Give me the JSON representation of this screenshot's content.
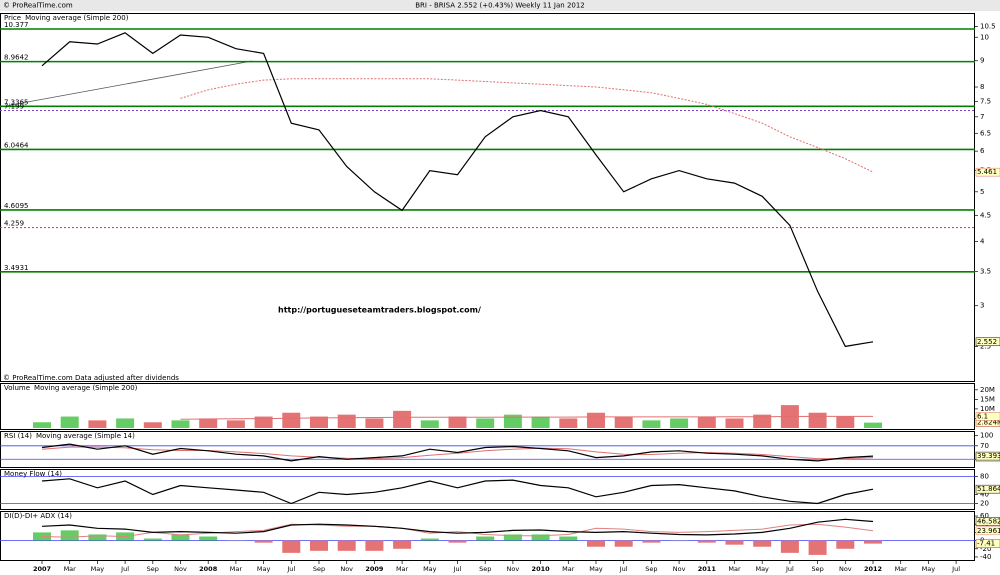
{
  "header": {
    "copyright": "© ProRealTime.com",
    "title": "BRI - BRISA   2.552 (+0.43%)   Weekly  11 Jan 2012"
  },
  "chart_data": [
    {
      "type": "line",
      "title": "Price",
      "log": true,
      "annotation": "http://portugueseteamtraders.blogspot.com/",
      "footnote": "© ProRealTime.com  Data adjusted after dividends",
      "categories": [
        "2007",
        "Mar",
        "May",
        "Jul",
        "Sep",
        "Nov",
        "2008",
        "Mar",
        "May",
        "Jul",
        "Sep",
        "Nov",
        "2009",
        "Mar",
        "May",
        "Jul",
        "Sep",
        "Nov",
        "2010",
        "Mar",
        "May",
        "Jul",
        "Sep",
        "Nov",
        "2011",
        "Mar",
        "May",
        "Jul",
        "Sep",
        "Nov",
        "2012",
        "Mar",
        "May",
        "Jul"
      ],
      "series": [
        {
          "name": "Moving average (Simple 200)",
          "color": "#e07070",
          "values": [
            null,
            null,
            null,
            null,
            null,
            7.6,
            7.9,
            8.1,
            8.25,
            8.3,
            8.3,
            8.3,
            8.3,
            8.3,
            8.3,
            8.25,
            8.2,
            8.15,
            8.1,
            8.05,
            8.0,
            7.9,
            7.8,
            7.6,
            7.4,
            7.1,
            6.8,
            6.4,
            6.1,
            5.8,
            5.461,
            null,
            null,
            null
          ]
        },
        {
          "name": "Price",
          "color": "#000000",
          "values": [
            8.8,
            9.8,
            9.7,
            10.2,
            9.3,
            10.1,
            10.0,
            9.5,
            9.3,
            6.8,
            6.6,
            5.6,
            5.0,
            4.6,
            5.5,
            5.4,
            6.4,
            7.0,
            7.2,
            7.0,
            5.9,
            5.0,
            5.3,
            5.5,
            5.3,
            5.2,
            4.9,
            4.3,
            3.2,
            2.5,
            2.552,
            null,
            null,
            null
          ]
        }
      ],
      "levels": [
        {
          "value": 10.377,
          "color": "#008000",
          "style": "solid"
        },
        {
          "value": 8.9642,
          "color": "#008000",
          "style": "solid"
        },
        {
          "value": 7.3365,
          "color": "#008000",
          "style": "solid"
        },
        {
          "value": 7.199,
          "color": "#8040c0",
          "style": "dotted"
        },
        {
          "value": 6.0464,
          "color": "#008000",
          "style": "solid"
        },
        {
          "value": 4.6095,
          "color": "#008000",
          "style": "solid"
        },
        {
          "value": 4.259,
          "color": "#e03030",
          "style": "dotted"
        },
        {
          "value": 3.4931,
          "color": "#008000",
          "style": "solid"
        }
      ],
      "ylim": [
        2.15,
        11
      ],
      "yticks": [
        2.5,
        3,
        3.5,
        4,
        4.5,
        5,
        5.5,
        6,
        6.5,
        7,
        7.5,
        8,
        9,
        10,
        10.5
      ]
    },
    {
      "type": "bar",
      "title": "Volume",
      "series": [
        {
          "name": "Volume",
          "colors": [
            "#40c040",
            "#40c040",
            "#e05050",
            "#40c040",
            "#e05050",
            "#40c040",
            "#e05050",
            "#e05050",
            "#e05050",
            "#e05050",
            "#e05050",
            "#e05050",
            "#e05050",
            "#e05050",
            "#40c040",
            "#e05050",
            "#40c040",
            "#40c040",
            "#40c040",
            "#e05050",
            "#e05050",
            "#e05050",
            "#40c040",
            "#40c040",
            "#e05050",
            "#e05050",
            "#e05050",
            "#e05050",
            "#e05050",
            "#e05050",
            "#40c040",
            null,
            null,
            null
          ],
          "values": [
            3,
            6,
            4,
            5,
            3,
            4,
            5,
            4,
            6,
            8,
            6,
            7,
            5,
            9,
            4,
            6,
            5,
            7,
            6,
            5,
            8,
            6,
            4,
            5,
            6,
            5,
            7,
            12,
            8,
            6,
            2.824,
            null,
            null,
            null
          ],
          "value_labels": [
            null,
            null,
            null,
            null,
            null,
            null,
            null,
            null,
            null,
            null,
            null,
            null,
            null,
            null,
            null,
            null,
            null,
            null,
            null,
            null,
            null,
            null,
            null,
            null,
            null,
            null,
            null,
            null,
            null,
            null,
            "2.824M",
            null,
            null,
            null
          ]
        },
        {
          "name": "Moving average (Simple 200)",
          "type": "line",
          "color": "#e07070",
          "values": [
            null,
            null,
            null,
            null,
            null,
            4.6,
            4.7,
            4.8,
            4.9,
            5.1,
            5.3,
            5.4,
            5.5,
            5.6,
            5.6,
            5.6,
            5.6,
            5.7,
            5.7,
            5.7,
            5.8,
            5.8,
            5.8,
            5.8,
            5.8,
            5.9,
            5.9,
            6.0,
            6.1,
            6.1,
            6.1,
            null,
            null,
            null
          ]
        }
      ],
      "ylim": [
        0,
        22
      ],
      "yticks": [
        {
          "value": 5,
          "label": "5M"
        },
        {
          "value": 10,
          "label": "10M"
        },
        {
          "value": 15,
          "label": "15M"
        },
        {
          "value": 20,
          "label": "20M"
        }
      ]
    },
    {
      "type": "line",
      "title": "RSI (14)",
      "series": [
        {
          "name": "Moving average (Simple 14)",
          "color": "#e07070",
          "values": [
            60,
            66,
            66,
            64,
            58,
            56,
            56,
            52,
            47,
            40,
            36,
            33,
            32,
            35,
            42,
            48,
            55,
            60,
            63,
            61,
            52,
            45,
            44,
            48,
            50,
            48,
            44,
            38,
            32,
            32,
            35,
            null,
            null,
            null
          ]
        },
        {
          "name": "RSI (14)",
          "color": "#000000",
          "values": [
            65,
            75,
            60,
            70,
            45,
            62,
            55,
            45,
            40,
            25,
            38,
            30,
            35,
            40,
            60,
            50,
            65,
            68,
            62,
            55,
            35,
            40,
            52,
            55,
            48,
            45,
            40,
            30,
            25,
            35,
            39.393,
            null,
            null,
            null
          ]
        }
      ],
      "levels": [
        {
          "value": 70,
          "color": "#4040ff",
          "style": "solid"
        },
        {
          "value": 30,
          "color": "#4040ff",
          "style": "solid"
        }
      ],
      "ylim": [
        10,
        105
      ],
      "yticks": [
        30,
        70,
        100
      ]
    },
    {
      "type": "line",
      "title": "Money Flow (14)",
      "series": [
        {
          "color": "#000000",
          "values": [
            70,
            75,
            55,
            70,
            40,
            60,
            55,
            50,
            45,
            20,
            45,
            40,
            45,
            55,
            70,
            55,
            70,
            72,
            60,
            55,
            35,
            45,
            60,
            62,
            55,
            48,
            35,
            25,
            20,
            40,
            51.864,
            null,
            null,
            null
          ]
        }
      ],
      "levels": [
        {
          "value": 80,
          "color": "#4040ff",
          "style": "solid"
        },
        {
          "value": 20,
          "color": "#4040ff",
          "style": "solid"
        }
      ],
      "ylim": [
        10,
        90
      ],
      "yticks": [
        20,
        40,
        80
      ]
    },
    {
      "type": "line",
      "title": "DI(D)-DI+ ADX (14)",
      "series": [
        {
          "type": "bar",
          "colors": [
            "#40c040",
            "#40c040",
            "#40c040",
            "#40c040",
            "#40c040",
            "#40c040",
            "#40c040",
            null,
            "#e05050",
            "#e05050",
            "#e05050",
            "#e05050",
            "#e05050",
            "#e05050",
            "#40c040",
            "#e05050",
            "#40c040",
            "#40c040",
            "#40c040",
            "#40c040",
            "#e05050",
            "#e05050",
            "#e05050",
            null,
            "#e05050",
            "#e05050",
            "#e05050",
            "#e05050",
            "#e05050",
            "#e05050",
            "#e05050",
            null,
            null,
            null
          ],
          "values": [
            20,
            25,
            15,
            20,
            5,
            15,
            10,
            0,
            -5,
            -30,
            -25,
            -25,
            -25,
            -20,
            5,
            -5,
            10,
            15,
            15,
            10,
            -15,
            -15,
            -5,
            0,
            -5,
            -10,
            -15,
            -30,
            -35,
            -20,
            -7.41,
            null,
            null,
            null
          ]
        },
        {
          "color": "#e08080",
          "values": [
            10,
            8,
            12,
            10,
            20,
            14,
            18,
            22,
            25,
            40,
            38,
            35,
            35,
            30,
            18,
            22,
            15,
            12,
            12,
            15,
            30,
            28,
            22,
            20,
            22,
            25,
            28,
            38,
            40,
            33,
            23.961,
            null,
            null,
            null
          ]
        },
        {
          "color": "#000000",
          "values": [
            35,
            38,
            30,
            28,
            20,
            22,
            20,
            18,
            22,
            38,
            40,
            38,
            35,
            30,
            22,
            18,
            20,
            25,
            26,
            22,
            20,
            22,
            18,
            15,
            14,
            16,
            20,
            30,
            45,
            52,
            46.582,
            null,
            null,
            null
          ]
        }
      ],
      "levels": [
        {
          "value": 0,
          "color": "#4040ff",
          "style": "solid"
        }
      ],
      "ylim": [
        -45,
        65
      ],
      "yticks": [
        -40,
        -20,
        0,
        20,
        40,
        60
      ]
    }
  ]
}
